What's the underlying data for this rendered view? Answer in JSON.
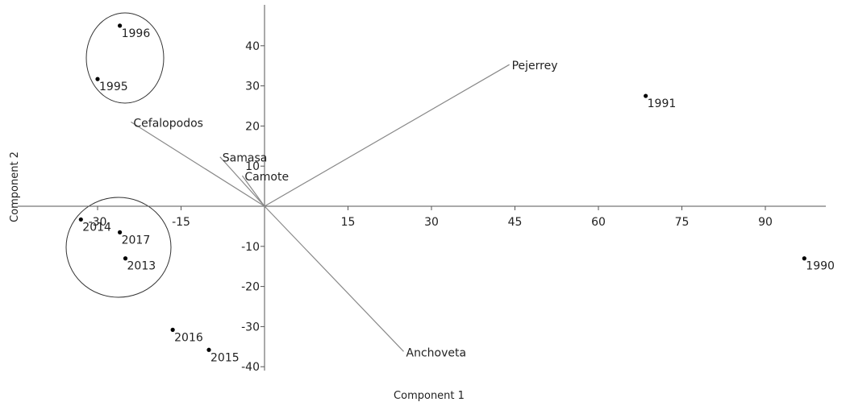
{
  "chart_data": {
    "type": "scatter",
    "subtype": "biplot",
    "xlabel": "Component 1",
    "ylabel": "Component 2",
    "xlim": [
      -40,
      100
    ],
    "ylim": [
      -41,
      50
    ],
    "x_ticks": [
      -30,
      -15,
      15,
      30,
      45,
      60,
      75,
      90
    ],
    "y_ticks": [
      -40,
      -30,
      -20,
      -10,
      10,
      20,
      30,
      40
    ],
    "grid": false,
    "points": [
      {
        "label": "1996",
        "x": -26,
        "y": 45
      },
      {
        "label": "1995",
        "x": -30,
        "y": 31.7
      },
      {
        "label": "1991",
        "x": 68.5,
        "y": 27.5
      },
      {
        "label": "2014",
        "x": -33,
        "y": -3.3
      },
      {
        "label": "2017",
        "x": -26,
        "y": -6.5
      },
      {
        "label": "2013",
        "x": -25,
        "y": -13
      },
      {
        "label": "1990",
        "x": 97,
        "y": -13
      },
      {
        "label": "2016",
        "x": -16.5,
        "y": -30.8
      },
      {
        "label": "2015",
        "x": -10,
        "y": -35.8
      }
    ],
    "loadings": [
      {
        "label": "Pejerrey",
        "x": 44,
        "y": 35.3
      },
      {
        "label": "Cefalopodos",
        "x": -24,
        "y": 21
      },
      {
        "label": "Samasa",
        "x": -8,
        "y": 12.3
      },
      {
        "label": "Camote",
        "x": -4,
        "y": 7.6
      },
      {
        "label": "Anchoveta",
        "x": 25,
        "y": -36.2
      }
    ],
    "groups": [
      {
        "members": [
          "1996",
          "1995"
        ]
      },
      {
        "members": [
          "2014",
          "2017",
          "2013"
        ]
      }
    ]
  }
}
